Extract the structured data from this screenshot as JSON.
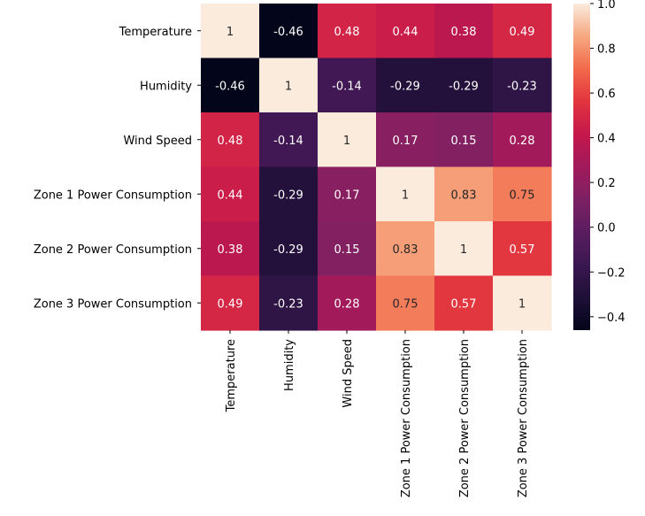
{
  "chart_data": {
    "type": "heatmap",
    "title": "",
    "xlabel": "",
    "ylabel": "",
    "row_labels": [
      "Temperature",
      "Humidity",
      "Wind Speed",
      "Zone 1 Power Consumption",
      "Zone 2 Power Consumption",
      "Zone 3 Power Consumption"
    ],
    "column_labels": [
      "Temperature",
      "Humidity",
      "Wind Speed",
      "Zone 1 Power Consumption",
      "Zone 2 Power Consumption",
      "Zone 3 Power Consumption"
    ],
    "values": [
      [
        1,
        -0.46,
        0.48,
        0.44,
        0.38,
        0.49
      ],
      [
        -0.46,
        1,
        -0.14,
        -0.29,
        -0.29,
        -0.23
      ],
      [
        0.48,
        -0.14,
        1,
        0.17,
        0.15,
        0.28
      ],
      [
        0.44,
        -0.29,
        0.17,
        1,
        0.83,
        0.75
      ],
      [
        0.38,
        -0.29,
        0.15,
        0.83,
        1,
        0.57
      ],
      [
        0.49,
        -0.23,
        0.28,
        0.75,
        0.57,
        1
      ]
    ],
    "annotations": [
      [
        "1",
        "-0.46",
        "0.48",
        "0.44",
        "0.38",
        "0.49"
      ],
      [
        "-0.46",
        "1",
        "-0.14",
        "-0.29",
        "-0.29",
        "-0.23"
      ],
      [
        "0.48",
        "-0.14",
        "1",
        "0.17",
        "0.15",
        "0.28"
      ],
      [
        "0.44",
        "-0.29",
        "0.17",
        "1",
        "0.83",
        "0.75"
      ],
      [
        "0.38",
        "-0.29",
        "0.15",
        "0.83",
        "1",
        "0.57"
      ],
      [
        "0.49",
        "-0.23",
        "0.28",
        "0.75",
        "0.57",
        "1"
      ]
    ],
    "colorbar": {
      "vmin": -0.46,
      "vmax": 1,
      "ticks": [
        -0.4,
        -0.2,
        0.0,
        0.2,
        0.4,
        0.6,
        0.8,
        1.0
      ],
      "tick_labels": [
        "−0.4",
        "−0.2",
        "0.0",
        "0.2",
        "0.4",
        "0.6",
        "0.8",
        "1.0"
      ]
    },
    "colormap": {
      "name": "rocket",
      "stops": [
        [
          0.0,
          "#03051a"
        ],
        [
          0.1,
          "#1e1037"
        ],
        [
          0.2,
          "#3b1751"
        ],
        [
          0.3,
          "#5a1d5f"
        ],
        [
          0.4,
          "#7c2163"
        ],
        [
          0.5,
          "#a11a5b"
        ],
        [
          0.6,
          "#c5184c"
        ],
        [
          0.7,
          "#e2343f"
        ],
        [
          0.8,
          "#f26a4b"
        ],
        [
          0.9,
          "#f6a880"
        ],
        [
          1.0,
          "#faebdd"
        ]
      ]
    }
  }
}
